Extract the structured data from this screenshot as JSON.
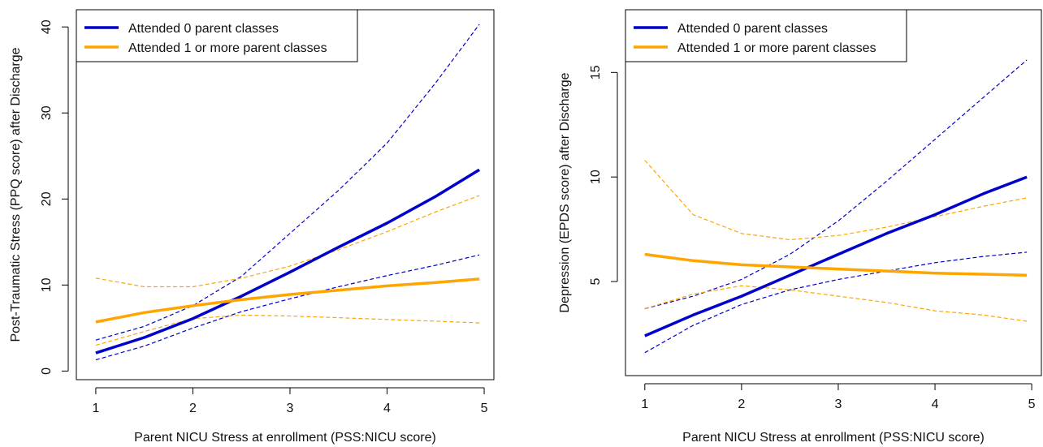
{
  "chart_data": [
    {
      "type": "line",
      "xlabel": "Parent NICU Stress at enrollment (PSS:NICU score)",
      "ylabel": "Post-Traumatic Stress (PPQ score) after Discharge",
      "xlim": [
        0.8,
        5.1
      ],
      "ylim": [
        -1,
        42
      ],
      "xticks": [
        1,
        2,
        3,
        4,
        5
      ],
      "yticks": [
        0,
        10,
        20,
        30,
        40
      ],
      "grid": false,
      "legend_position": "top-left",
      "x": [
        1,
        1.5,
        2,
        2.5,
        3,
        3.5,
        4,
        4.5,
        4.95
      ],
      "series": [
        {
          "name": "Attended 0 parent classes",
          "color": "#0000CC",
          "values": [
            2.1,
            3.9,
            6.1,
            8.7,
            11.5,
            14.4,
            17.2,
            20.3,
            23.4
          ],
          "ci_lower": [
            1.3,
            2.9,
            5.0,
            6.9,
            8.4,
            9.8,
            11.1,
            12.3,
            13.5
          ],
          "ci_upper": [
            3.6,
            5.2,
            7.6,
            11.0,
            16.0,
            21.0,
            26.5,
            33.5,
            40.3
          ]
        },
        {
          "name": "Attended 1 or more parent classes",
          "color": "#FFA500",
          "values": [
            5.7,
            6.8,
            7.6,
            8.3,
            8.9,
            9.4,
            9.9,
            10.3,
            10.7
          ],
          "ci_lower": [
            3.0,
            4.6,
            6.1,
            6.5,
            6.4,
            6.2,
            6.0,
            5.8,
            5.6
          ],
          "ci_upper": [
            10.8,
            9.8,
            9.8,
            10.8,
            12.2,
            14.1,
            16.2,
            18.5,
            20.4
          ]
        }
      ]
    },
    {
      "type": "line",
      "xlabel": "Parent NICU Stress at enrollment (PSS:NICU score)",
      "ylabel": "Depression (EPDS score) after Discharge",
      "xlim": [
        0.8,
        5.1
      ],
      "ylim": [
        0.5,
        18
      ],
      "xticks": [
        1,
        2,
        3,
        4,
        5
      ],
      "yticks": [
        5,
        10,
        15
      ],
      "grid": false,
      "legend_position": "top-left",
      "x": [
        1,
        1.5,
        2,
        2.5,
        3,
        3.5,
        4,
        4.5,
        4.95
      ],
      "series": [
        {
          "name": "Attended 0 parent classes",
          "color": "#0000CC",
          "values": [
            2.4,
            3.4,
            4.3,
            5.3,
            6.3,
            7.3,
            8.2,
            9.2,
            10.0
          ],
          "ci_lower": [
            1.6,
            2.9,
            3.9,
            4.6,
            5.1,
            5.5,
            5.9,
            6.2,
            6.4
          ],
          "ci_upper": [
            3.7,
            4.3,
            5.1,
            6.3,
            7.9,
            9.8,
            11.8,
            13.8,
            15.6
          ]
        },
        {
          "name": "Attended 1 or more parent classes",
          "color": "#FFA500",
          "values": [
            6.3,
            6.0,
            5.8,
            5.7,
            5.6,
            5.5,
            5.4,
            5.35,
            5.3
          ],
          "ci_lower": [
            3.7,
            4.4,
            4.8,
            4.6,
            4.3,
            4.0,
            3.6,
            3.4,
            3.1
          ],
          "ci_upper": [
            10.8,
            8.2,
            7.3,
            7.0,
            7.2,
            7.6,
            8.1,
            8.6,
            9.0
          ]
        }
      ]
    }
  ]
}
